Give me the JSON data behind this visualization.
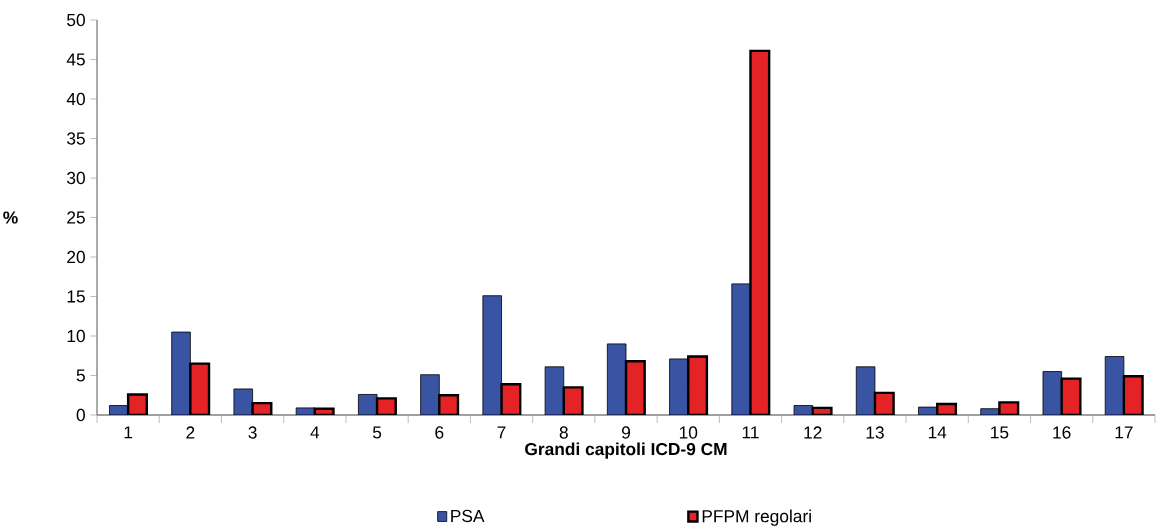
{
  "chart_data": {
    "type": "bar",
    "xlabel": "Grandi capitoli ICD-9 CM",
    "ylabel": "%",
    "categories": [
      "1",
      "2",
      "3",
      "4",
      "5",
      "6",
      "7",
      "8",
      "9",
      "10",
      "11",
      "12",
      "13",
      "14",
      "15",
      "16",
      "17"
    ],
    "series": [
      {
        "name": "PSA",
        "color": "#3a54a4",
        "values": [
          1.2,
          10.5,
          3.3,
          0.9,
          2.6,
          5.1,
          15.1,
          6.1,
          9.0,
          7.1,
          16.6,
          1.2,
          6.1,
          1.0,
          0.8,
          5.5,
          7.4
        ]
      },
      {
        "name": "PFPM regolari",
        "color": "#e32326",
        "values": [
          2.6,
          6.5,
          1.5,
          0.8,
          2.1,
          2.5,
          3.9,
          3.5,
          6.8,
          7.4,
          46.1,
          0.9,
          2.8,
          1.4,
          1.6,
          4.6,
          4.9
        ]
      }
    ],
    "ylim": [
      0,
      50
    ],
    "yticks": [
      0,
      5,
      10,
      15,
      20,
      25,
      30,
      35,
      40,
      45,
      50
    ],
    "grid": false,
    "legend": "bottom"
  }
}
